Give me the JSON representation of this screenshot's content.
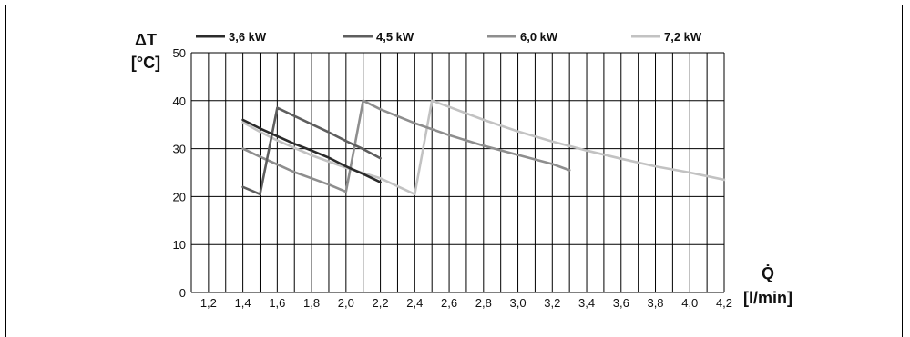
{
  "chart_data": {
    "type": "line",
    "ylabel_line1": "ΔT",
    "ylabel_line2": "[°C]",
    "xlabel_line1": "Q̇",
    "xlabel_line2": "[l/min]",
    "xlim": [
      1.1,
      4.2
    ],
    "ylim": [
      0,
      50
    ],
    "x_ticks": [
      "1,2",
      "1,4",
      "1,6",
      "1,8",
      "2,0",
      "2,2",
      "2,4",
      "2,6",
      "2,8",
      "3,0",
      "3,2",
      "3,4",
      "3,6",
      "3,8",
      "4,0",
      "4,2"
    ],
    "y_ticks": [
      "0",
      "10",
      "20",
      "30",
      "40",
      "50"
    ],
    "grid": true,
    "legend_placement": "top",
    "series": [
      {
        "name": "3,6 kW",
        "color": "#2b2b2b",
        "points": [
          [
            1.4,
            36
          ],
          [
            1.5,
            34.2
          ],
          [
            1.6,
            32.6
          ],
          [
            1.7,
            31.0
          ],
          [
            1.8,
            29.6
          ],
          [
            1.9,
            28.1
          ],
          [
            2.0,
            26.3
          ],
          [
            2.1,
            24.7
          ],
          [
            2.2,
            23.0
          ]
        ]
      },
      {
        "name": "4,5 kW",
        "color": "#5e5e5e",
        "points": [
          [
            1.4,
            22
          ],
          [
            1.5,
            20.5
          ],
          [
            1.6,
            38.5
          ],
          [
            1.7,
            36.8
          ],
          [
            1.8,
            35.1
          ],
          [
            1.9,
            33.4
          ],
          [
            2.0,
            31.6
          ],
          [
            2.1,
            29.9
          ],
          [
            2.2,
            28.0
          ]
        ]
      },
      {
        "name": "6,0 kW",
        "color": "#8e8e8e",
        "points": [
          [
            1.4,
            30
          ],
          [
            1.5,
            28.3
          ],
          [
            1.6,
            26.7
          ],
          [
            1.7,
            25.1
          ],
          [
            1.8,
            23.8
          ],
          [
            1.9,
            22.5
          ],
          [
            2.0,
            21.0
          ],
          [
            2.1,
            40
          ],
          [
            2.2,
            38.2
          ],
          [
            2.4,
            35.3
          ],
          [
            2.6,
            32.8
          ],
          [
            2.8,
            30.6
          ],
          [
            3.0,
            28.7
          ],
          [
            3.2,
            26.8
          ],
          [
            3.3,
            25.5
          ]
        ]
      },
      {
        "name": "7,2 kW",
        "color": "#c2c2c2",
        "points": [
          [
            1.4,
            35.5
          ],
          [
            1.5,
            33.5
          ],
          [
            1.6,
            31.7
          ],
          [
            1.8,
            28.6
          ],
          [
            2.0,
            26.0
          ],
          [
            2.2,
            23.8
          ],
          [
            2.4,
            20.5
          ],
          [
            2.5,
            40
          ],
          [
            2.6,
            38.7
          ],
          [
            2.8,
            36.0
          ],
          [
            3.0,
            33.6
          ],
          [
            3.2,
            31.5
          ],
          [
            3.4,
            29.6
          ],
          [
            3.6,
            27.9
          ],
          [
            3.8,
            26.3
          ],
          [
            4.0,
            25.0
          ],
          [
            4.2,
            23.5
          ]
        ]
      }
    ]
  }
}
